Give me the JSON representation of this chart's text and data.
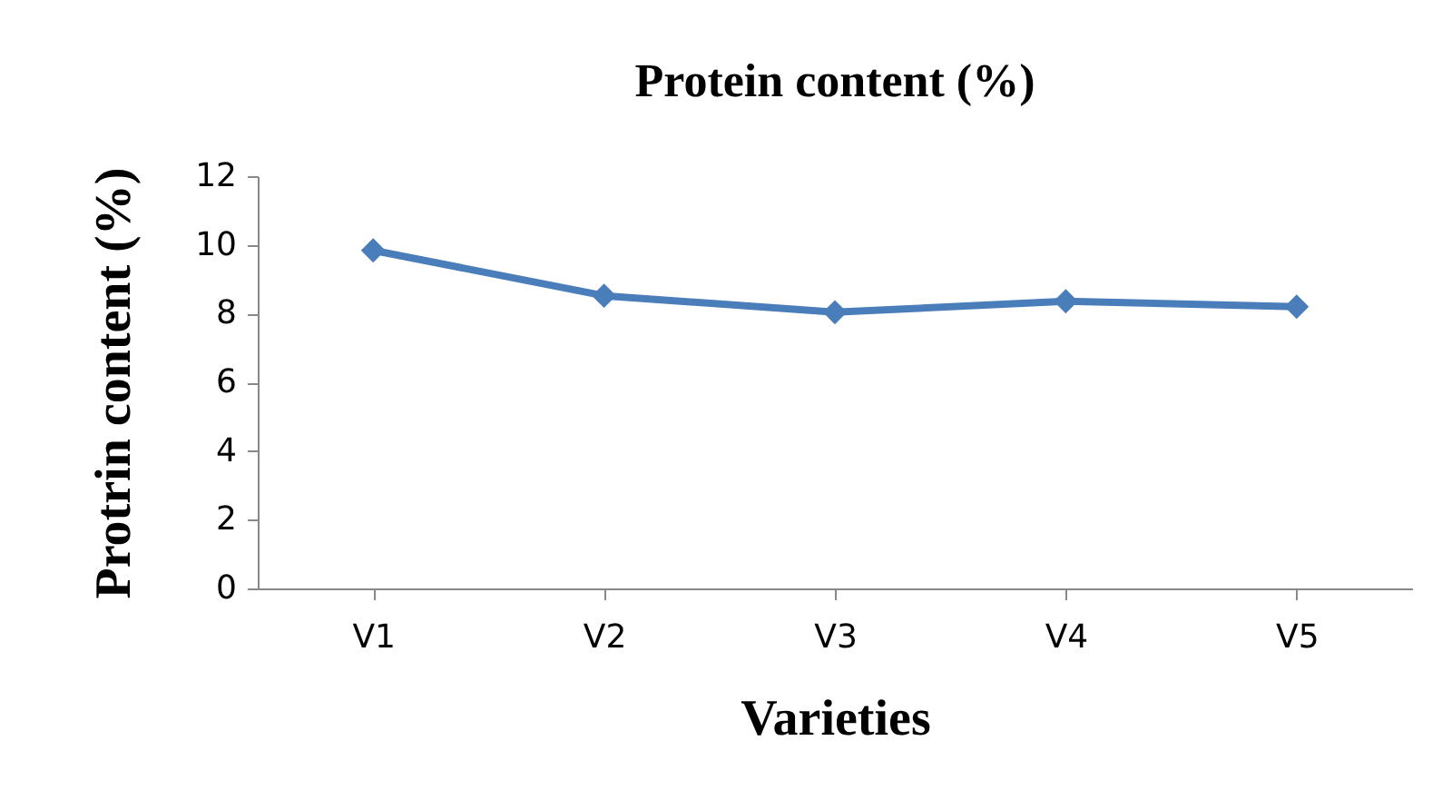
{
  "chart_data": {
    "type": "line",
    "title": "Protein content (%)",
    "xlabel": "Varieties",
    "ylabel": "Protrin content (%)",
    "categories": [
      "V1",
      "V2",
      "V3",
      "V4",
      "V5"
    ],
    "series": [
      {
        "color": "#4a7ebb",
        "values": [
          9.84,
          8.52,
          8.04,
          8.36,
          8.2
        ]
      }
    ],
    "ylim": [
      0,
      12
    ],
    "yticks": [
      0,
      2,
      4,
      6,
      8,
      10,
      12
    ],
    "grid": false,
    "marker": "diamond",
    "line_style": "solid"
  }
}
